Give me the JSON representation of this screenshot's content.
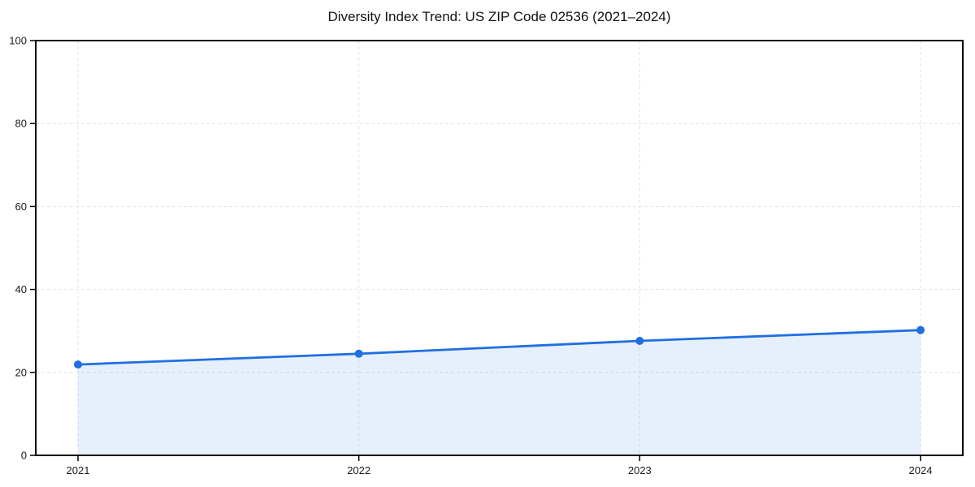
{
  "chart_data": {
    "type": "area",
    "title": "Diversity Index Trend: US ZIP Code 02536 (2021–2024)",
    "x": [
      2021,
      2022,
      2023,
      2024
    ],
    "values": [
      21.9,
      24.5,
      27.6,
      30.2
    ],
    "xlabel": "",
    "ylabel": "",
    "xticklabels": [
      "2021",
      "2022",
      "2023",
      "2024"
    ],
    "yticks": [
      0,
      20,
      40,
      60,
      80,
      100
    ],
    "ylim": [
      0,
      100
    ],
    "grid": true,
    "grid_style": "dashed",
    "legend": false,
    "colors": {
      "line": "#1f6fe0",
      "marker": "#1f6fe0",
      "area_fill_rgba": "rgba(31,111,224,0.11)",
      "grid": "#e4e4e4",
      "spine": "#000000",
      "tick_label": "#1a1a1a",
      "title": "#111111",
      "background": "#ffffff"
    }
  }
}
